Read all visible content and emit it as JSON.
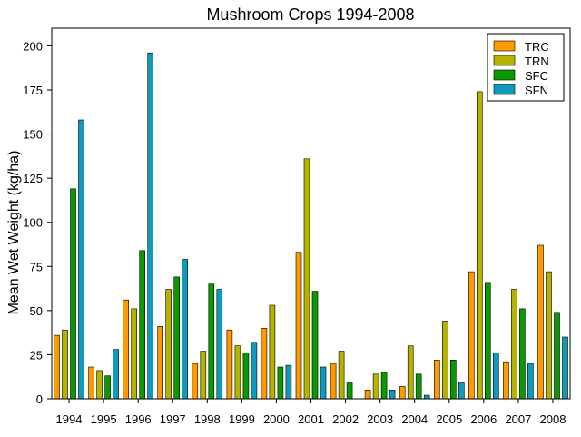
{
  "chart_data": {
    "type": "bar",
    "title": "Mushroom Crops  1994-2008",
    "xlabel": "",
    "ylabel": "Mean Wet Weight (kg/ha)",
    "ylim": [
      0,
      210
    ],
    "yticks": [
      0,
      25,
      50,
      75,
      100,
      125,
      150,
      175,
      200
    ],
    "grid": false,
    "legend_position": "top-right",
    "categories": [
      "1994",
      "1995",
      "1996",
      "1997",
      "1998",
      "1999",
      "2000",
      "2001",
      "2002",
      "2003",
      "2004",
      "2005",
      "2006",
      "2007",
      "2008"
    ],
    "series": [
      {
        "name": "TRC",
        "color": "#ff9900",
        "values": [
          36,
          18,
          56,
          41,
          20,
          39,
          40,
          83,
          20,
          5,
          7,
          22,
          72,
          21,
          87
        ]
      },
      {
        "name": "TRN",
        "color": "#b3b300",
        "values": [
          39,
          16,
          51,
          62,
          27,
          30,
          53,
          136,
          27,
          14,
          30,
          44,
          174,
          62,
          72
        ]
      },
      {
        "name": "SFC",
        "color": "#0a9900",
        "values": [
          119,
          13,
          84,
          69,
          65,
          26,
          18,
          61,
          9,
          15,
          14,
          22,
          66,
          51,
          49
        ]
      },
      {
        "name": "SFN",
        "color": "#1199bb",
        "values": [
          158,
          28,
          196,
          79,
          62,
          32,
          19,
          18,
          0,
          5,
          2,
          9,
          26,
          20,
          35
        ]
      }
    ]
  }
}
